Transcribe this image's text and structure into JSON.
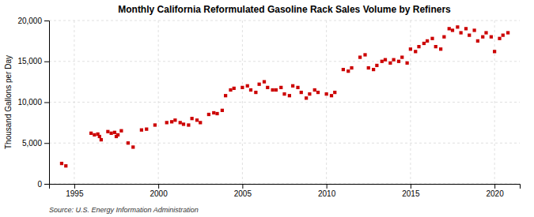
{
  "chart_data": {
    "type": "scatter",
    "title": "Monthly California Reformulated Gasoline Rack Sales Volume by Refiners",
    "ylabel": "Thousand Gallons per Day",
    "annotations": [
      "Source: U.S. Energy Information Administration"
    ],
    "color": "#cc0000",
    "marker": "square",
    "grid": true,
    "xlim": [
      1993.5,
      2021.5
    ],
    "ylim": [
      0,
      20000
    ],
    "xticks": [
      1995,
      2000,
      2005,
      2010,
      2015,
      2020
    ],
    "yticks": [
      0,
      {
        "value": 5000,
        "label": "5,000"
      },
      {
        "value": 10000,
        "label": "10,000"
      },
      {
        "value": 15000,
        "label": "15,000"
      },
      {
        "value": 20000,
        "label": "20,000"
      }
    ],
    "x": [
      1994.25,
      1994.5,
      1996.0,
      1996.2,
      1996.4,
      1996.5,
      1996.6,
      1997.0,
      1997.2,
      1997.4,
      1997.5,
      1997.6,
      1997.8,
      1998.2,
      1998.5,
      1999.0,
      1999.3,
      1999.8,
      2000.5,
      2000.8,
      2001.0,
      2001.3,
      2001.5,
      2001.8,
      2002.0,
      2002.3,
      2002.5,
      2003.0,
      2003.3,
      2003.5,
      2003.8,
      2004.0,
      2004.3,
      2004.5,
      2005.0,
      2005.3,
      2005.5,
      2005.8,
      2006.0,
      2006.3,
      2006.5,
      2006.8,
      2007.0,
      2007.3,
      2007.5,
      2007.8,
      2008.0,
      2008.3,
      2008.5,
      2008.8,
      2009.0,
      2009.3,
      2009.5,
      2010.0,
      2010.3,
      2010.5,
      2011.0,
      2011.3,
      2011.5,
      2012.0,
      2012.3,
      2012.5,
      2012.8,
      2013.0,
      2013.3,
      2013.5,
      2013.8,
      2014.0,
      2014.3,
      2014.5,
      2014.8,
      2015.0,
      2015.3,
      2015.5,
      2015.8,
      2016.0,
      2016.3,
      2016.5,
      2016.8,
      2017.0,
      2017.3,
      2017.5,
      2017.8,
      2018.0,
      2018.3,
      2018.5,
      2018.8,
      2019.0,
      2019.3,
      2019.5,
      2019.8,
      2020.0,
      2020.3,
      2020.5,
      2020.8
    ],
    "values": [
      2500,
      2200,
      6200,
      6000,
      6100,
      5800,
      5400,
      6400,
      6200,
      6300,
      5800,
      6000,
      6500,
      5000,
      4500,
      6600,
      6700,
      7200,
      7500,
      7600,
      7800,
      7500,
      7300,
      7200,
      8000,
      7800,
      7500,
      8500,
      8700,
      8600,
      9000,
      10800,
      11500,
      11700,
      11800,
      12000,
      11500,
      11200,
      12200,
      12500,
      11800,
      11500,
      11500,
      11800,
      11000,
      10800,
      12000,
      11800,
      11200,
      10500,
      11000,
      11500,
      11200,
      11000,
      10800,
      11200,
      14000,
      13800,
      14200,
      15500,
      15800,
      14200,
      14000,
      14500,
      15000,
      15200,
      14800,
      15200,
      15000,
      15500,
      14800,
      16500,
      16200,
      16800,
      17200,
      17500,
      17800,
      16800,
      16500,
      18000,
      19000,
      18800,
      19200,
      18500,
      19000,
      18200,
      18800,
      17500,
      18000,
      18500,
      18000,
      16200,
      17800,
      18200,
      18500
    ]
  }
}
